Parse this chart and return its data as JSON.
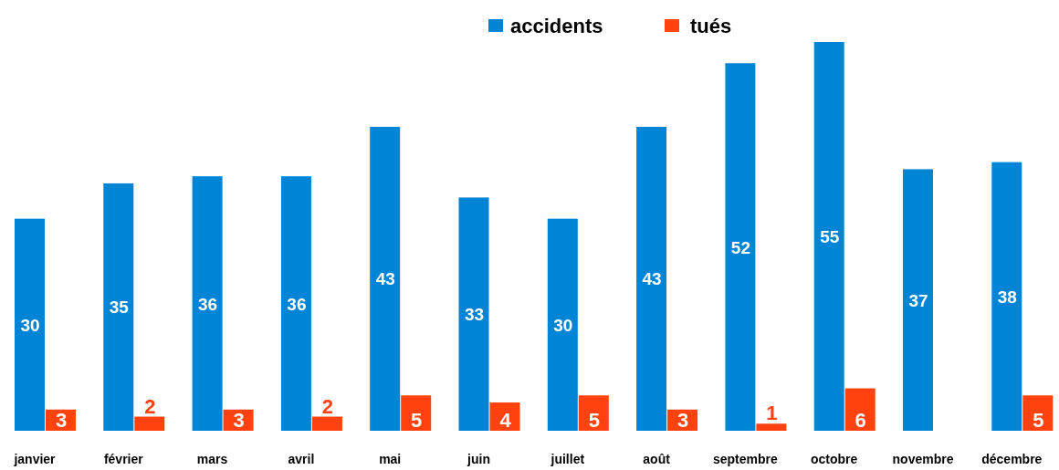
{
  "chart_data": {
    "type": "bar",
    "categories": [
      "janvier",
      "février",
      "mars",
      "avril",
      "mai",
      "juin",
      "juillet",
      "août",
      "septembre",
      "octobre",
      "novembre",
      "décembre"
    ],
    "series": [
      {
        "name": "accidents",
        "color": "#0084d6",
        "values": [
          30,
          35,
          36,
          36,
          43,
          33,
          30,
          43,
          52,
          55,
          37,
          38
        ]
      },
      {
        "name": "tués",
        "color": "#ff420e",
        "values": [
          3,
          2,
          3,
          2,
          5,
          4,
          5,
          3,
          1,
          6,
          null,
          5
        ]
      }
    ],
    "data_labels": true,
    "legend": "top"
  }
}
